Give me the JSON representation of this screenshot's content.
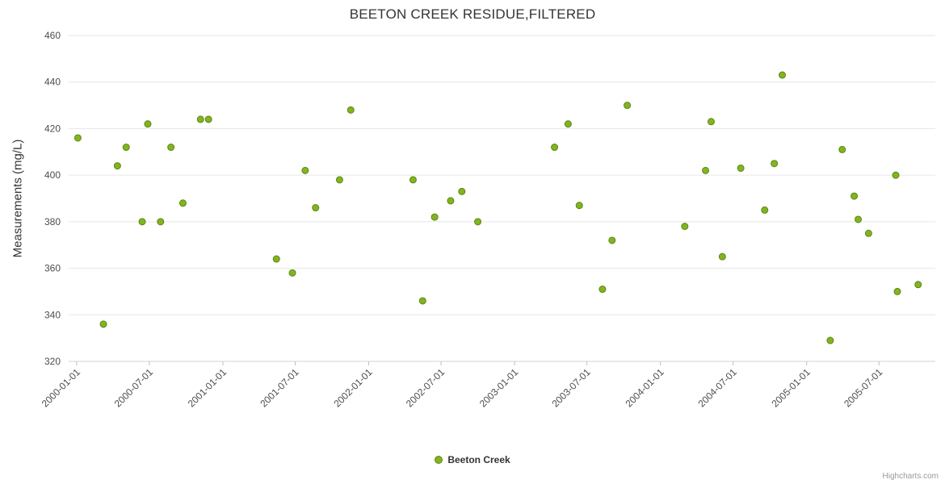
{
  "chart": {
    "credit": "Highcharts.com"
  },
  "chart_data": {
    "type": "scatter",
    "title": "BEETON CREEK RESIDUE,FILTERED",
    "xlabel": "",
    "ylabel": "Measurements (mg/L)",
    "ylim": [
      320,
      460
    ],
    "y_ticks": [
      320,
      340,
      360,
      380,
      400,
      420,
      440,
      460
    ],
    "x_ticks": [
      "2000-01-01",
      "2000-07-01",
      "2001-01-01",
      "2001-07-01",
      "2002-01-01",
      "2002-07-01",
      "2003-01-01",
      "2003-07-01",
      "2004-01-01",
      "2004-07-01",
      "2005-01-01",
      "2005-07-01"
    ],
    "x_range": [
      "1999-12-12",
      "2005-11-19"
    ],
    "grid": true,
    "legend_position": "bottom-center",
    "colors": {
      "point_fill": "#82b420",
      "point_stroke": "#5d8614",
      "gridline": "#e6e6e6",
      "axis_line": "#d0d0d0",
      "tick_mark": "#c0c0c0"
    },
    "series": [
      {
        "name": "Beeton Creek",
        "color": "#82b420",
        "points": [
          [
            "2000-01-04",
            416
          ],
          [
            "2000-03-08",
            336
          ],
          [
            "2000-04-12",
            404
          ],
          [
            "2000-05-04",
            412
          ],
          [
            "2000-06-13",
            380
          ],
          [
            "2000-06-27",
            422
          ],
          [
            "2000-07-29",
            380
          ],
          [
            "2000-08-24",
            412
          ],
          [
            "2000-09-23",
            388
          ],
          [
            "2000-11-06",
            424
          ],
          [
            "2000-11-26",
            424
          ],
          [
            "2001-05-15",
            364
          ],
          [
            "2001-06-24",
            358
          ],
          [
            "2001-07-26",
            402
          ],
          [
            "2001-08-21",
            386
          ],
          [
            "2001-10-20",
            398
          ],
          [
            "2001-11-17",
            428
          ],
          [
            "2002-04-22",
            398
          ],
          [
            "2002-05-16",
            346
          ],
          [
            "2002-06-15",
            382
          ],
          [
            "2002-07-25",
            389
          ],
          [
            "2002-08-22",
            393
          ],
          [
            "2002-10-01",
            380
          ],
          [
            "2003-04-11",
            412
          ],
          [
            "2003-05-15",
            422
          ],
          [
            "2003-06-12",
            387
          ],
          [
            "2003-08-09",
            351
          ],
          [
            "2003-09-02",
            372
          ],
          [
            "2003-10-10",
            430
          ],
          [
            "2004-03-02",
            378
          ],
          [
            "2004-04-23",
            402
          ],
          [
            "2004-05-07",
            423
          ],
          [
            "2004-06-04",
            365
          ],
          [
            "2004-07-20",
            403
          ],
          [
            "2004-09-18",
            385
          ],
          [
            "2004-10-12",
            405
          ],
          [
            "2004-11-01",
            443
          ],
          [
            "2005-03-01",
            329
          ],
          [
            "2005-03-31",
            411
          ],
          [
            "2005-04-30",
            391
          ],
          [
            "2005-05-10",
            381
          ],
          [
            "2005-06-05",
            375
          ],
          [
            "2005-08-12",
            400
          ],
          [
            "2005-08-16",
            350
          ],
          [
            "2005-10-07",
            353
          ]
        ]
      }
    ]
  }
}
